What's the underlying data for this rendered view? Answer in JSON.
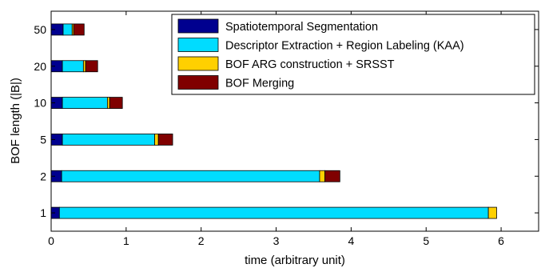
{
  "chart_data": {
    "type": "bar",
    "orientation": "horizontal",
    "stacked": true,
    "title": "",
    "xlabel": "time (arbitrary unit)",
    "ylabel": "BOF length (|B|)",
    "xlim": [
      0,
      6.5
    ],
    "xticks": [
      "0",
      "1",
      "2",
      "3",
      "4",
      "5",
      "6"
    ],
    "categories": [
      "1",
      "2",
      "5",
      "10",
      "20",
      "50"
    ],
    "series": [
      {
        "name": "Spatiotemporal Segmentation",
        "color": "#00008f",
        "values": [
          0.11,
          0.14,
          0.15,
          0.15,
          0.15,
          0.16
        ]
      },
      {
        "name": "Descriptor Extraction + Region Labeling (KAA)",
        "color": "#00dcff",
        "values": [
          5.72,
          3.44,
          1.23,
          0.6,
          0.28,
          0.12
        ]
      },
      {
        "name": "BOF ARG construction + SRSST",
        "color": "#ffd000",
        "values": [
          0.11,
          0.07,
          0.05,
          0.03,
          0.03,
          0.02
        ]
      },
      {
        "name": "BOF Merging",
        "color": "#800000",
        "values": [
          0.0,
          0.2,
          0.19,
          0.17,
          0.16,
          0.14
        ]
      }
    ],
    "grid": false,
    "legend_position": "top-right"
  }
}
